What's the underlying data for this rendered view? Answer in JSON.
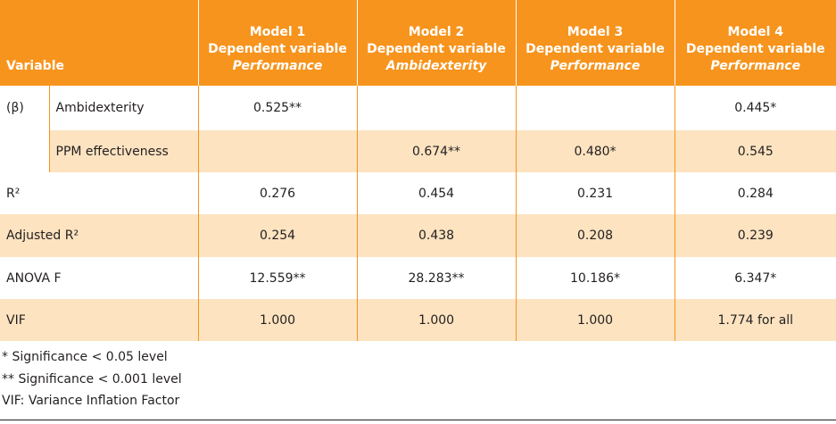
{
  "table": {
    "header": {
      "variable": "Variable",
      "models": [
        {
          "name": "Model 1",
          "dependent": "Dependent variable",
          "variable": "Performance"
        },
        {
          "name": "Model 2",
          "dependent": "Dependent variable",
          "variable": "Ambidexterity"
        },
        {
          "name": "Model 3",
          "dependent": "Dependent variable",
          "variable": "Performance"
        },
        {
          "name": "Model 4",
          "dependent": "Dependent variable",
          "variable": "Performance"
        }
      ]
    },
    "beta_label": "(β)",
    "rows": [
      {
        "label": "Ambidexterity",
        "cells": [
          "0.525**",
          null,
          null,
          "0.445*"
        ]
      },
      {
        "label": "PPM effectiveness",
        "cells": [
          null,
          "0.674**",
          "0.480*",
          "0.545"
        ]
      },
      {
        "label": "R²",
        "cells": [
          "0.276",
          "0.454",
          "0.231",
          "0.284"
        ]
      },
      {
        "label": "Adjusted R²",
        "cells": [
          "0.254",
          "0.438",
          "0.208",
          "0.239"
        ]
      },
      {
        "label": "ANOVA F",
        "cells": [
          "12.559**",
          "28.283**",
          "10.186*",
          "6.347*"
        ]
      },
      {
        "label": "VIF",
        "cells": [
          "1.000",
          "1.000",
          "1.000",
          "1.774 for all"
        ]
      }
    ],
    "notes": [
      "* Significance < 0.05 level",
      "** Significance < 0.001 level",
      "VIF: Variance Inflation Factor"
    ]
  }
}
